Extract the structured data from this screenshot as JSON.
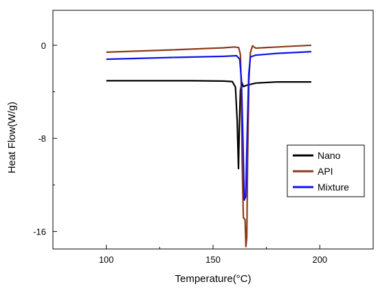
{
  "chart_data": {
    "type": "line",
    "xlabel": "Temperature(°C)",
    "ylabel": "Heat Flow(W/g)",
    "xlim": [
      75,
      225
    ],
    "ylim": [
      -17.5,
      3
    ],
    "x_ticks": [
      100,
      150,
      200
    ],
    "x_tick_labels": [
      "100",
      "150",
      "200"
    ],
    "y_ticks": [
      -16,
      -8,
      0
    ],
    "y_tick_labels": [
      "-16",
      "-8",
      "0"
    ],
    "grid": false,
    "legend": {
      "position": "right"
    },
    "series": [
      {
        "name": "Nano",
        "color": "#000000",
        "points": [
          [
            100,
            -3.05
          ],
          [
            120,
            -3.05
          ],
          [
            140,
            -3.05
          ],
          [
            155,
            -3.08
          ],
          [
            159,
            -3.12
          ],
          [
            160.5,
            -3.6
          ],
          [
            161.3,
            -6.5
          ],
          [
            161.9,
            -10.6
          ],
          [
            162.3,
            -7.0
          ],
          [
            162.8,
            -3.9
          ],
          [
            163.5,
            -3.2
          ],
          [
            164.2,
            -3.55
          ],
          [
            165.5,
            -3.45
          ],
          [
            170,
            -3.25
          ],
          [
            180,
            -3.15
          ],
          [
            196,
            -3.15
          ]
        ]
      },
      {
        "name": "API",
        "color": "#8B3A1A",
        "points": [
          [
            100,
            -0.6
          ],
          [
            130,
            -0.4
          ],
          [
            155,
            -0.22
          ],
          [
            160,
            -0.15
          ],
          [
            162,
            -0.2
          ],
          [
            162.8,
            -0.8
          ],
          [
            163.2,
            -3.5
          ],
          [
            163.6,
            -10.0
          ],
          [
            164.2,
            -14.8
          ],
          [
            165.0,
            -15.0
          ],
          [
            165.4,
            -17.3
          ],
          [
            165.8,
            -16.5
          ],
          [
            166.2,
            -10.0
          ],
          [
            166.8,
            -3.0
          ],
          [
            167.5,
            -0.6
          ],
          [
            168.5,
            -0.05
          ],
          [
            170,
            -0.25
          ],
          [
            180,
            -0.15
          ],
          [
            196,
            0.0
          ]
        ]
      },
      {
        "name": "Mixture",
        "color": "#1010E8",
        "points": [
          [
            100,
            -1.2
          ],
          [
            130,
            -1.05
          ],
          [
            155,
            -0.95
          ],
          [
            161,
            -0.9
          ],
          [
            162.5,
            -1.2
          ],
          [
            163.3,
            -3.0
          ],
          [
            164.0,
            -8.0
          ],
          [
            164.6,
            -13.3
          ],
          [
            165.3,
            -13.0
          ],
          [
            166.0,
            -7.5
          ],
          [
            166.7,
            -2.5
          ],
          [
            167.5,
            -1.0
          ],
          [
            170,
            -0.85
          ],
          [
            180,
            -0.7
          ],
          [
            196,
            -0.55
          ]
        ]
      }
    ]
  }
}
